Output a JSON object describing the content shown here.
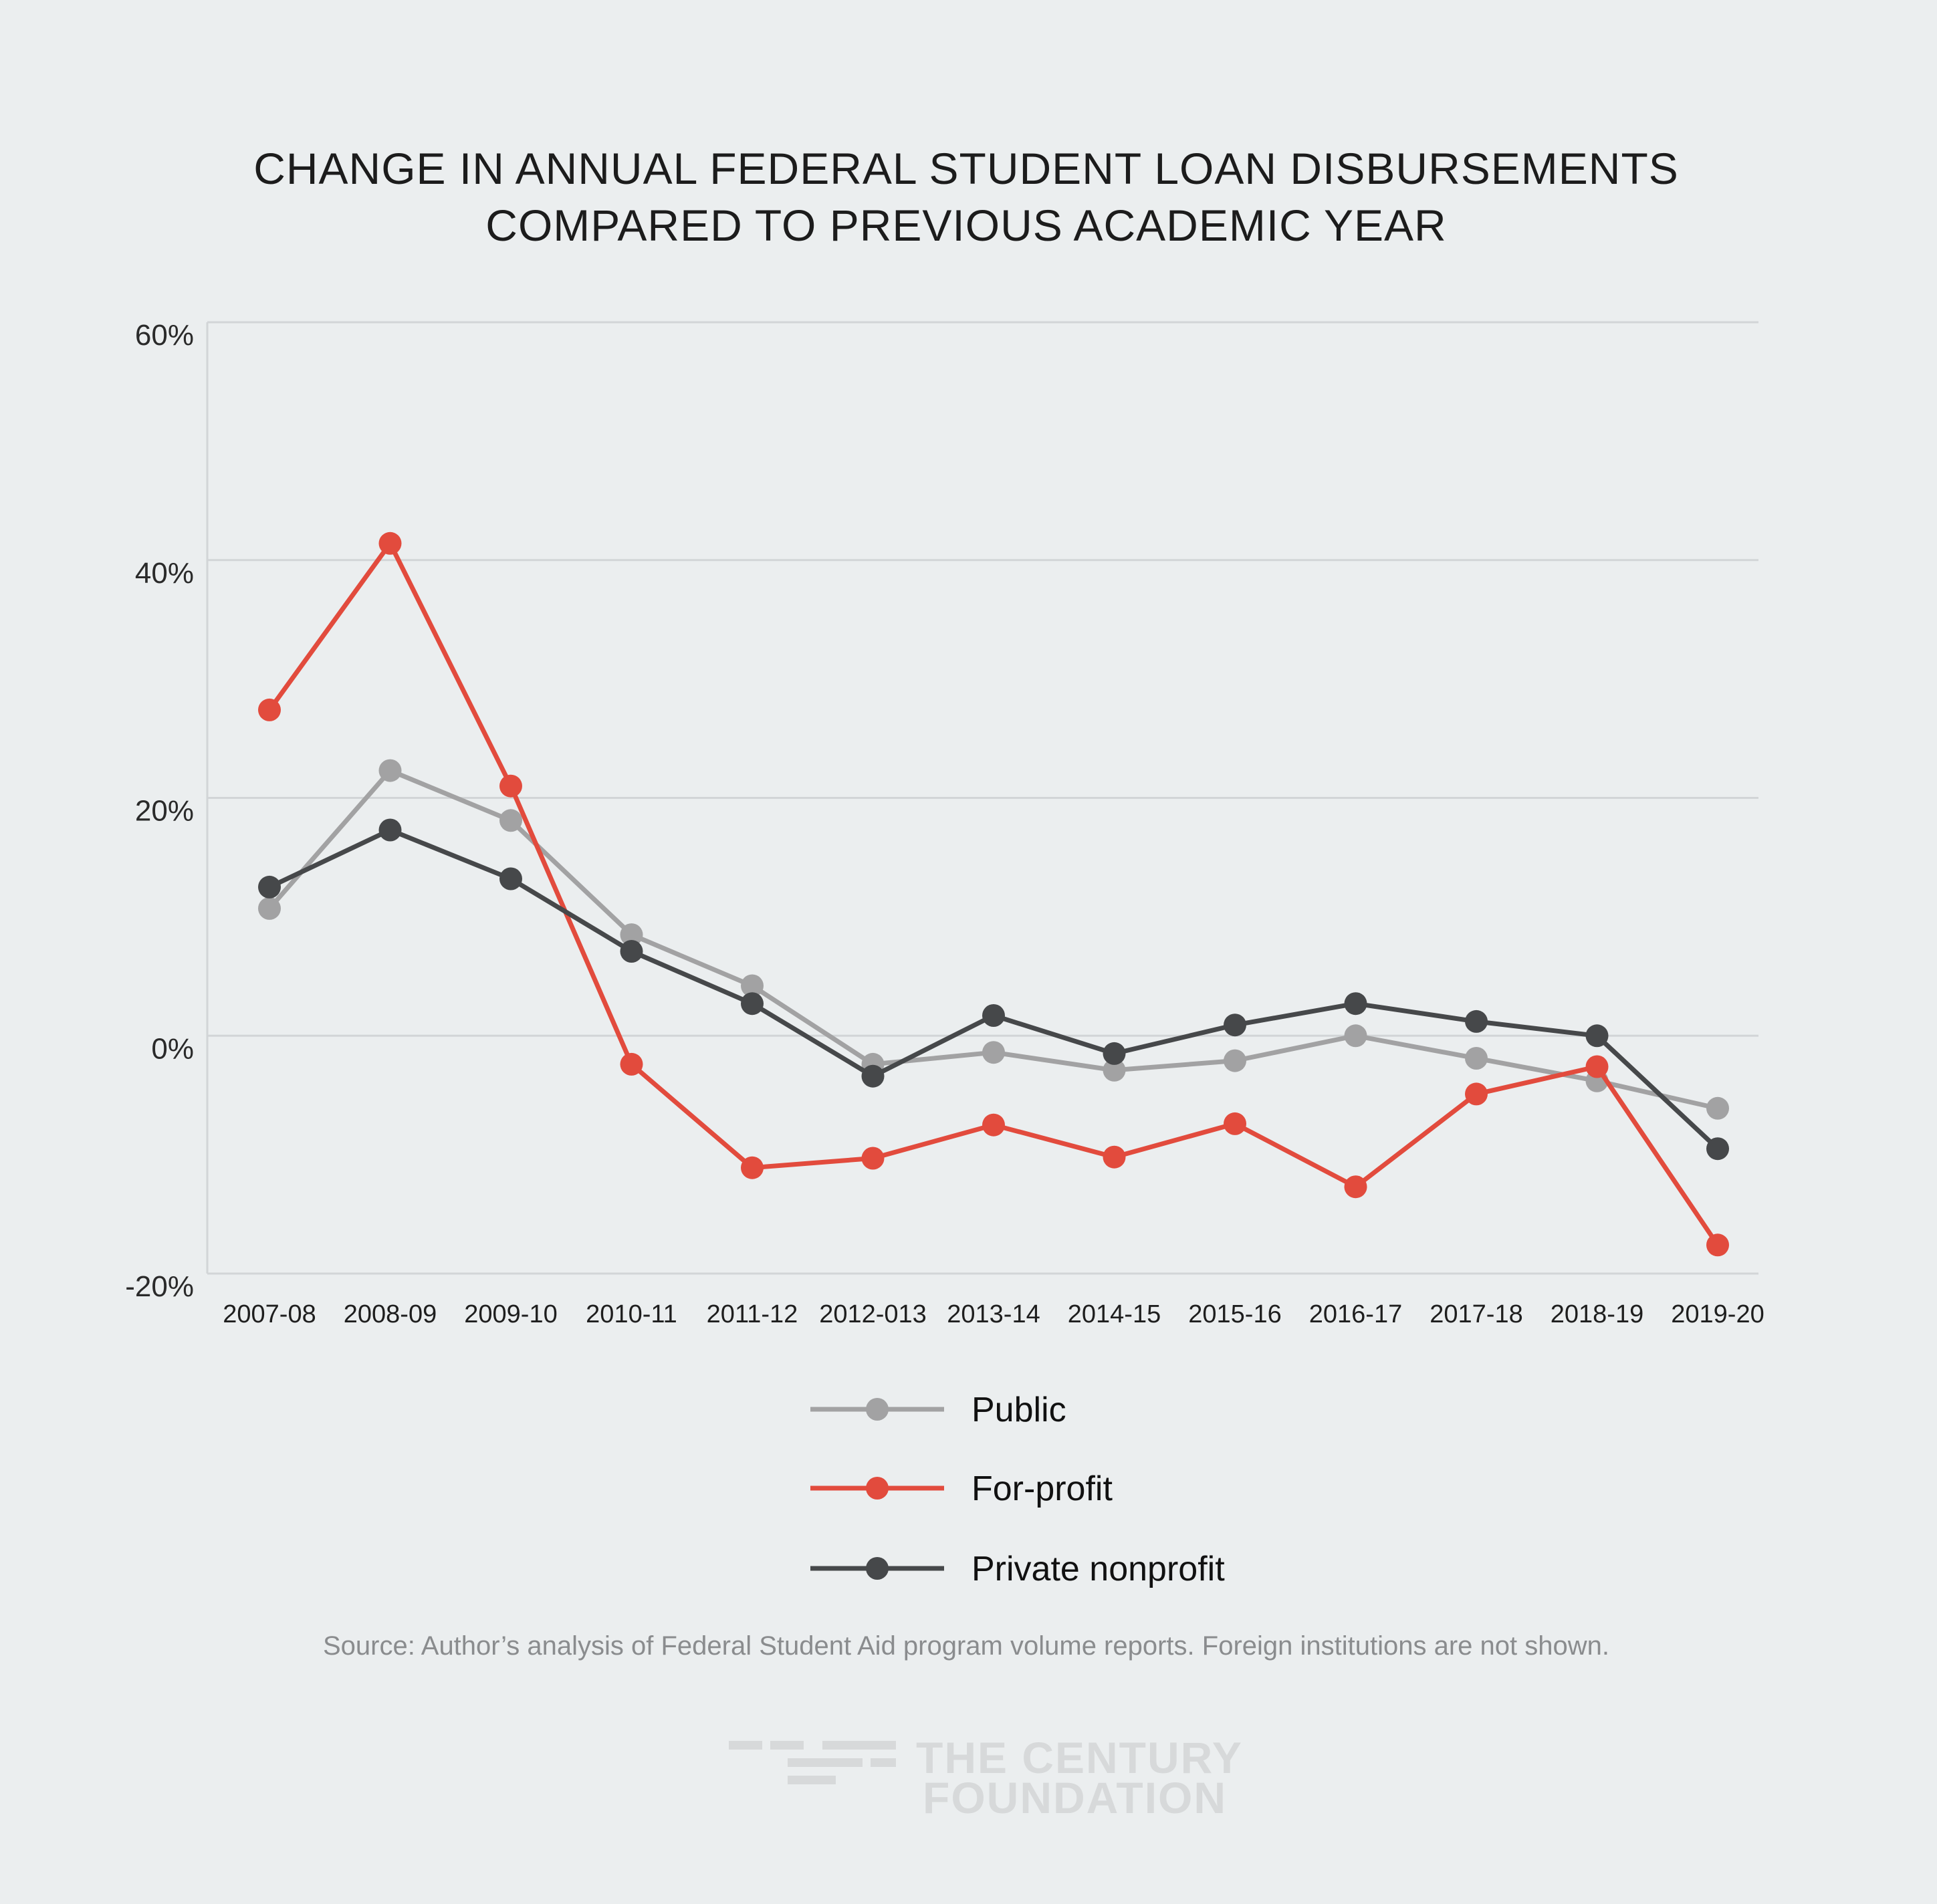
{
  "colors": {
    "background": "#ebeeef",
    "grid": "#d2d5d7",
    "public": "#a2a2a3",
    "for_profit": "#e24b3d",
    "private_nonprofit": "#46484a",
    "logo": "#d7d9da"
  },
  "chart_data": {
    "type": "line",
    "title": "CHANGE IN ANNUAL FEDERAL STUDENT LOAN DISBURSEMENTS COMPARED TO PREVIOUS ACADEMIC YEAR",
    "title_lines": [
      "CHANGE IN ANNUAL FEDERAL STUDENT LOAN DISBURSEMENTS",
      "COMPARED TO PREVIOUS ACADEMIC YEAR"
    ],
    "xlabel": "",
    "ylabel": "",
    "ylim": [
      -20,
      60
    ],
    "yticks": [
      60,
      40,
      20,
      0,
      -20
    ],
    "ytick_labels": [
      "60%",
      "40%",
      "20%",
      "0%",
      "-20%"
    ],
    "grid": true,
    "categories": [
      "2007-08",
      "2008-09",
      "2009-10",
      "2010-11",
      "2011-12",
      "2012-013",
      "2013-14",
      "2014-15",
      "2015-16",
      "2016-17",
      "2017-18",
      "2018-19",
      "2019-20"
    ],
    "series": [
      {
        "key": "public",
        "name": "Public",
        "color": "#a2a2a3",
        "values": [
          10.7,
          22.3,
          18.1,
          8.5,
          4.2,
          -2.4,
          -1.4,
          -2.9,
          -2.1,
          0.0,
          -1.9,
          -3.8,
          -6.1
        ]
      },
      {
        "key": "for_profit",
        "name": "For-profit",
        "color": "#e24b3d",
        "values": [
          27.4,
          41.4,
          21.0,
          -2.4,
          -11.1,
          -10.3,
          -7.5,
          -10.2,
          -7.4,
          -12.7,
          -4.9,
          -2.6,
          -17.6
        ]
      },
      {
        "key": "private_nonprofit",
        "name": "Private nonprofit",
        "color": "#46484a",
        "values": [
          12.5,
          17.3,
          13.2,
          7.1,
          2.7,
          -3.4,
          1.7,
          -1.5,
          0.9,
          2.7,
          1.2,
          0.0,
          -9.5
        ]
      }
    ],
    "legend_position": "bottom-center",
    "legend_order": [
      "public",
      "for_profit",
      "private_nonprofit"
    ],
    "source": "Source: Author’s analysis of Federal Student Aid program volume reports. Foreign institutions are not shown."
  },
  "logo": {
    "line1": "THE CENTURY",
    "line2": "FOUNDATION"
  }
}
